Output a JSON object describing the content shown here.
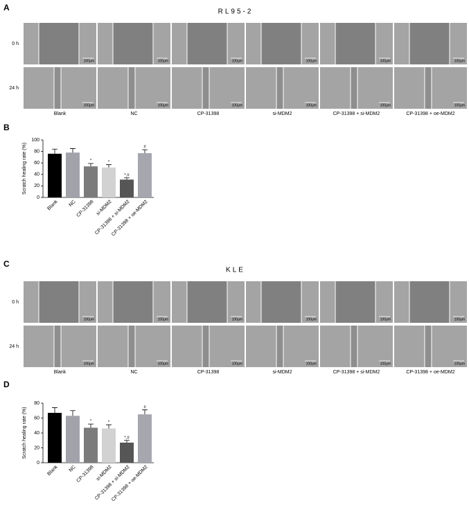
{
  "panel_labels": [
    "A",
    "B",
    "C",
    "D"
  ],
  "image_panels": [
    {
      "title": "RL95-2",
      "rows": [
        "0 h",
        "24 h"
      ],
      "columns": [
        "Blank",
        "NC",
        "CP-31398",
        "si-MDM2",
        "CP-31398 + si-MDM2",
        "CP-31398 + oe-MDM2"
      ],
      "scale_bars": [
        "100μm",
        "100μm",
        "100μm",
        "100μm",
        "100μm",
        "100μm",
        "100μm",
        "100μm",
        "100μm",
        "100μm",
        "100μm",
        "100μm"
      ]
    },
    {
      "title": "KLE",
      "rows": [
        "0 h",
        "24 h"
      ],
      "columns": [
        "Blank",
        "NC",
        "CP-31398",
        "si-MDM2",
        "CP-31398 + si-MDM2",
        "CP-31398 + oe-MDM2"
      ],
      "scale_bars": [
        "100μm",
        "100μm",
        "100μm",
        "100μm",
        "100μm",
        "100μm",
        "100μm",
        "100μm",
        "100μm",
        "100μm",
        "100μm",
        "100μm"
      ]
    }
  ],
  "chart_data": [
    {
      "type": "bar",
      "y_label": "Scratch healing rate (%)",
      "categories": [
        "Blank",
        "NC",
        "CP-31398",
        "si-MDM2",
        "CP-31398 + si-MDM2",
        "CP-31398 + oe-MDM2"
      ],
      "values": [
        76,
        78,
        54,
        52,
        31,
        77
      ],
      "errors": [
        8,
        7,
        5,
        5,
        3,
        6
      ],
      "annotations": [
        null,
        null,
        "*",
        "*",
        "*,#",
        "#"
      ],
      "colors": [
        "#000000",
        "#a2a2aa",
        "#7b7b7b",
        "#d2d2d2",
        "#565656",
        "#a6a6ae"
      ],
      "ylim": [
        0,
        100
      ],
      "yticks": [
        0,
        20,
        40,
        60,
        80,
        100
      ]
    },
    {
      "type": "bar",
      "y_label": "Scratch healing rate (%)",
      "categories": [
        "Blank",
        "NC",
        "CP-31398",
        "si-MDM2",
        "CP-31398 + si-MDM2",
        "CP-31398 + oe-MDM2"
      ],
      "values": [
        67,
        63,
        47,
        46,
        27,
        65
      ],
      "errors": [
        7,
        7,
        5,
        5,
        3,
        6
      ],
      "annotations": [
        null,
        null,
        "*",
        "*",
        "*,#",
        "#"
      ],
      "colors": [
        "#000000",
        "#a2a2aa",
        "#7b7b7b",
        "#d2d2d2",
        "#565656",
        "#a6a6ae"
      ],
      "ylim": [
        0,
        80
      ],
      "yticks": [
        0,
        20,
        40,
        60,
        80
      ]
    }
  ]
}
